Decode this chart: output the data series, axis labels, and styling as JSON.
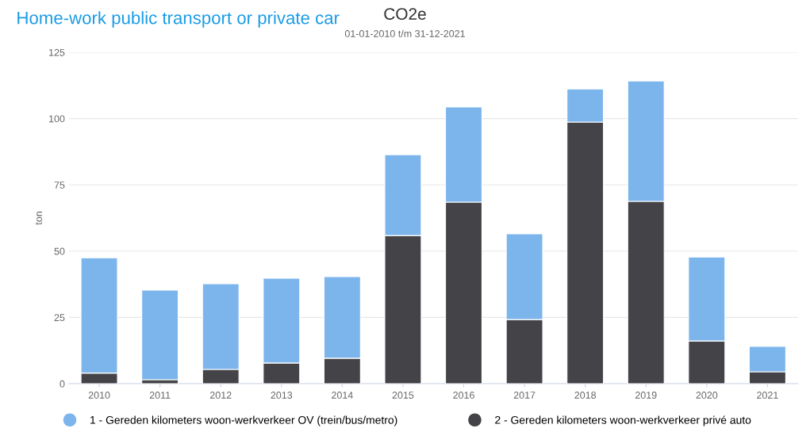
{
  "chart_data": {
    "type": "bar",
    "title": "CO2e",
    "subtitle": "01-01-2010 t/m 31-12-2021",
    "ylabel": "ton",
    "annotations": [
      "Home-work public transport or private car"
    ],
    "categories": [
      "2010",
      "2011",
      "2012",
      "2013",
      "2014",
      "2015",
      "2016",
      "2017",
      "2018",
      "2019",
      "2020",
      "2021"
    ],
    "stacked": true,
    "series": [
      {
        "name": "2 - Gereden kilometers woon-werkverkeer privé auto",
        "color": "#434348",
        "values": [
          4,
          1.5,
          5.4,
          7.8,
          9.6,
          55.9,
          68.5,
          24.2,
          98.7,
          68.8,
          16.1,
          4.5
        ]
      },
      {
        "name": "1 - Gereden kilometers woon-werkverkeer OV (trein/bus/metro)",
        "color": "#7cb5ec",
        "values": [
          43.5,
          33.8,
          32.3,
          32,
          30.8,
          30.5,
          35.9,
          32.3,
          12.5,
          45.4,
          31.7,
          9.6
        ]
      }
    ],
    "ylim": [
      0,
      125
    ],
    "yticks": [
      0,
      25,
      50,
      75,
      100,
      125
    ],
    "grid": "y",
    "legend": "bottom"
  }
}
